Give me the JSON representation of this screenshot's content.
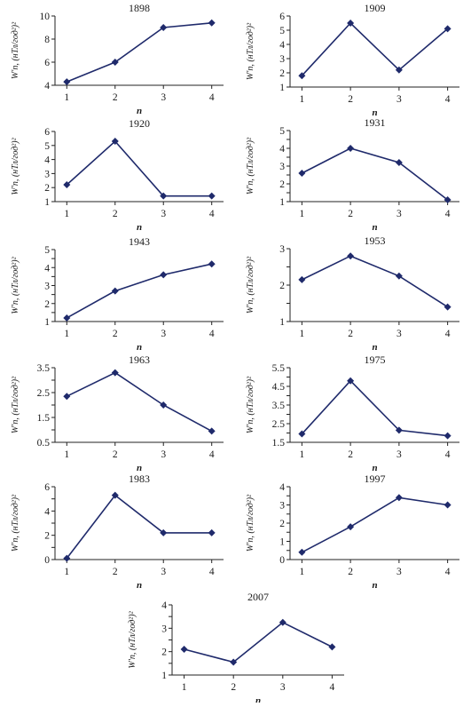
{
  "chart_data": [
    {
      "type": "line",
      "title": "1898",
      "xlabel": "n",
      "ylabel": "W'n, (нТл/год²)²",
      "categories": [
        "1",
        "2",
        "3",
        "4"
      ],
      "series": [
        {
          "values": [
            4.3,
            6.0,
            9.0,
            9.4
          ]
        }
      ],
      "ylim": [
        4,
        10
      ],
      "yticks": [
        4,
        6,
        8,
        10
      ],
      "yticklabels": [
        "4",
        "6",
        "8",
        "10"
      ],
      "grid": false
    },
    {
      "type": "line",
      "title": "1909",
      "xlabel": "n",
      "ylabel": "W'n, (нТл/год²)²",
      "categories": [
        "1",
        "2",
        "3",
        "4"
      ],
      "series": [
        {
          "values": [
            1.8,
            5.5,
            2.2,
            5.1
          ]
        }
      ],
      "ylim": [
        1,
        6
      ],
      "yticks": [
        1,
        2,
        3,
        4,
        5,
        6
      ],
      "yticklabels": [
        "1",
        "2",
        "3",
        "4",
        "5",
        "6"
      ],
      "grid": false
    },
    {
      "type": "line",
      "title": "1920",
      "xlabel": "n",
      "ylabel": "W'n, (нТл/год²)²",
      "categories": [
        "1",
        "2",
        "3",
        "4"
      ],
      "series": [
        {
          "values": [
            2.2,
            5.3,
            1.4,
            1.4
          ]
        }
      ],
      "ylim": [
        1,
        6
      ],
      "yticks": [
        1,
        2,
        3,
        4,
        5,
        6
      ],
      "yticklabels": [
        "1",
        "2",
        "3",
        "4",
        "5",
        "6"
      ],
      "grid": false
    },
    {
      "type": "line",
      "title": "1931",
      "xlabel": "n",
      "ylabel": "W'n, (нТл/год²)²",
      "categories": [
        "1",
        "2",
        "3",
        "4"
      ],
      "series": [
        {
          "values": [
            2.6,
            4.0,
            3.2,
            1.1
          ]
        }
      ],
      "ylim": [
        1,
        5
      ],
      "yticks": [
        1,
        1.5,
        2,
        2.5,
        3,
        3.5,
        4,
        4.5,
        5
      ],
      "yticklabels": [
        "1",
        "",
        "2",
        "",
        "3",
        "",
        "4",
        "",
        "5"
      ],
      "grid": false
    },
    {
      "type": "line",
      "title": "1943",
      "xlabel": "n",
      "ylabel": "W'n, (нТл/год²)²",
      "categories": [
        "1",
        "2",
        "3",
        "4"
      ],
      "series": [
        {
          "values": [
            1.2,
            2.7,
            3.6,
            4.2
          ]
        }
      ],
      "ylim": [
        1,
        5
      ],
      "yticks": [
        1,
        1.5,
        2,
        2.5,
        3,
        3.5,
        4,
        4.5,
        5
      ],
      "yticklabels": [
        "1",
        "",
        "2",
        "",
        "3",
        "",
        "4",
        "",
        "5"
      ],
      "grid": false
    },
    {
      "type": "line",
      "title": "1953",
      "xlabel": "n",
      "ylabel": "W'n, (нТл/год²)²",
      "categories": [
        "1",
        "2",
        "3",
        "4"
      ],
      "series": [
        {
          "values": [
            2.15,
            2.8,
            2.25,
            1.4
          ]
        }
      ],
      "ylim": [
        1,
        3
      ],
      "yticks": [
        1,
        1.5,
        2,
        2.5,
        3
      ],
      "yticklabels": [
        "1",
        "",
        "2",
        "",
        "3"
      ],
      "grid": false
    },
    {
      "type": "line",
      "title": "1963",
      "xlabel": "n",
      "ylabel": "W'n, (нТл/год²)²",
      "categories": [
        "1",
        "2",
        "3",
        "4"
      ],
      "series": [
        {
          "values": [
            2.35,
            3.3,
            2.0,
            0.95
          ]
        }
      ],
      "ylim": [
        0.5,
        3.5
      ],
      "yticks": [
        0.5,
        1,
        1.5,
        2,
        2.5,
        3,
        3.5
      ],
      "yticklabels": [
        "0.5",
        "",
        "1.5",
        "",
        "2.5",
        "",
        "3.5"
      ],
      "grid": false
    },
    {
      "type": "line",
      "title": "1975",
      "xlabel": "n",
      "ylabel": "W'n, (нТл/год²)²",
      "categories": [
        "1",
        "2",
        "3",
        "4"
      ],
      "series": [
        {
          "values": [
            1.95,
            4.8,
            2.15,
            1.85
          ]
        }
      ],
      "ylim": [
        1.5,
        5.5
      ],
      "yticks": [
        1.5,
        2,
        2.5,
        3,
        3.5,
        4,
        4.5,
        5,
        5.5
      ],
      "yticklabels": [
        "1.5",
        "",
        "2.5",
        "",
        "3.5",
        "",
        "4.5",
        "",
        "5.5"
      ],
      "grid": false
    },
    {
      "type": "line",
      "title": "1983",
      "xlabel": "n",
      "ylabel": "W'n, (нТл/год²)²",
      "categories": [
        "1",
        "2",
        "3",
        "4"
      ],
      "series": [
        {
          "values": [
            0.1,
            5.3,
            2.2,
            2.2
          ]
        }
      ],
      "ylim": [
        0,
        6
      ],
      "yticks": [
        0,
        1,
        2,
        3,
        4,
        5,
        6
      ],
      "yticklabels": [
        "0",
        "",
        "2",
        "",
        "4",
        "",
        "6"
      ],
      "grid": false
    },
    {
      "type": "line",
      "title": "1997",
      "xlabel": "n",
      "ylabel": "W'n, (нТл/год²)²",
      "categories": [
        "1",
        "2",
        "3",
        "4"
      ],
      "series": [
        {
          "values": [
            0.4,
            1.8,
            3.4,
            3.0
          ]
        }
      ],
      "ylim": [
        0,
        4
      ],
      "yticks": [
        0,
        0.5,
        1,
        1.5,
        2,
        2.5,
        3,
        3.5,
        4
      ],
      "yticklabels": [
        "0",
        "",
        "1",
        "",
        "2",
        "",
        "3",
        "",
        "4"
      ],
      "grid": false
    },
    {
      "type": "line",
      "title": "2007",
      "xlabel": "n",
      "ylabel": "W'n, (нТл/год²)²",
      "categories": [
        "1",
        "2",
        "3",
        "4"
      ],
      "series": [
        {
          "values": [
            2.1,
            1.55,
            3.25,
            2.2
          ]
        }
      ],
      "ylim": [
        1,
        4
      ],
      "yticks": [
        1,
        1.5,
        2,
        2.5,
        3,
        3.5,
        4
      ],
      "yticklabels": [
        "1",
        "",
        "2",
        "",
        "3",
        "",
        "4"
      ],
      "grid": false
    }
  ],
  "colors": {
    "series": "#1f2a6b",
    "axis": "#222222",
    "text": "#1a1a1a"
  }
}
